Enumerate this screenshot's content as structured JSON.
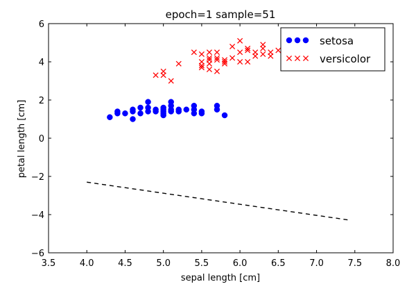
{
  "chart_data": {
    "type": "scatter",
    "title": "epoch=1  sample=51",
    "xlabel": "sepal length [cm]",
    "ylabel": "petal length [cm]",
    "xlim": [
      3.5,
      8.0
    ],
    "ylim": [
      -6,
      6
    ],
    "xticks": [
      3.5,
      4.0,
      4.5,
      5.0,
      5.5,
      6.0,
      6.5,
      7.0,
      7.5,
      8.0
    ],
    "xtick_labels": [
      "3.5",
      "4.0",
      "4.5",
      "5.0",
      "5.5",
      "6.0",
      "6.5",
      "7.0",
      "7.5",
      "8.0"
    ],
    "yticks": [
      -6,
      -4,
      -2,
      0,
      2,
      4,
      6
    ],
    "ytick_labels": [
      "−6",
      "−4",
      "−2",
      "0",
      "2",
      "4",
      "6"
    ],
    "legend_position": "top-right",
    "series": [
      {
        "name": "setosa",
        "marker": "circle",
        "color": "#0000ff",
        "points": [
          [
            4.3,
            1.1
          ],
          [
            4.4,
            1.3
          ],
          [
            4.4,
            1.4
          ],
          [
            4.5,
            1.3
          ],
          [
            4.6,
            1.0
          ],
          [
            4.6,
            1.4
          ],
          [
            4.6,
            1.5
          ],
          [
            4.7,
            1.3
          ],
          [
            4.7,
            1.6
          ],
          [
            4.8,
            1.4
          ],
          [
            4.8,
            1.6
          ],
          [
            4.8,
            1.9
          ],
          [
            4.9,
            1.4
          ],
          [
            4.9,
            1.5
          ],
          [
            5.0,
            1.2
          ],
          [
            5.0,
            1.3
          ],
          [
            5.0,
            1.4
          ],
          [
            5.0,
            1.5
          ],
          [
            5.0,
            1.6
          ],
          [
            5.1,
            1.4
          ],
          [
            5.1,
            1.5
          ],
          [
            5.1,
            1.7
          ],
          [
            5.1,
            1.9
          ],
          [
            5.2,
            1.4
          ],
          [
            5.2,
            1.5
          ],
          [
            5.3,
            1.5
          ],
          [
            5.4,
            1.3
          ],
          [
            5.4,
            1.5
          ],
          [
            5.4,
            1.7
          ],
          [
            5.5,
            1.3
          ],
          [
            5.5,
            1.4
          ],
          [
            5.7,
            1.5
          ],
          [
            5.7,
            1.7
          ],
          [
            5.8,
            1.2
          ]
        ]
      },
      {
        "name": "versicolor",
        "marker": "x",
        "color": "#ff0000",
        "points": [
          [
            4.9,
            3.3
          ],
          [
            5.0,
            3.3
          ],
          [
            5.0,
            3.5
          ],
          [
            5.1,
            3.0
          ],
          [
            5.2,
            3.9
          ],
          [
            5.4,
            4.5
          ],
          [
            5.5,
            3.7
          ],
          [
            5.5,
            3.8
          ],
          [
            5.5,
            4.0
          ],
          [
            5.5,
            4.4
          ],
          [
            5.6,
            3.6
          ],
          [
            5.6,
            3.9
          ],
          [
            5.6,
            4.1
          ],
          [
            5.6,
            4.2
          ],
          [
            5.6,
            4.5
          ],
          [
            5.7,
            3.5
          ],
          [
            5.7,
            4.1
          ],
          [
            5.7,
            4.2
          ],
          [
            5.7,
            4.5
          ],
          [
            5.8,
            3.9
          ],
          [
            5.8,
            4.0
          ],
          [
            5.8,
            4.1
          ],
          [
            5.9,
            4.2
          ],
          [
            5.9,
            4.8
          ],
          [
            6.0,
            4.0
          ],
          [
            6.0,
            4.5
          ],
          [
            6.0,
            5.1
          ],
          [
            6.1,
            4.0
          ],
          [
            6.1,
            4.6
          ],
          [
            6.1,
            4.7
          ],
          [
            6.2,
            4.3
          ],
          [
            6.2,
            4.5
          ],
          [
            6.3,
            4.4
          ],
          [
            6.3,
            4.7
          ],
          [
            6.3,
            4.9
          ],
          [
            6.4,
            4.3
          ],
          [
            6.4,
            4.5
          ],
          [
            6.5,
            4.6
          ]
        ]
      }
    ],
    "decision_boundary": {
      "style": "dashed",
      "color": "#000000",
      "points": [
        [
          4.0,
          -2.3
        ],
        [
          7.45,
          -4.3
        ]
      ]
    }
  }
}
